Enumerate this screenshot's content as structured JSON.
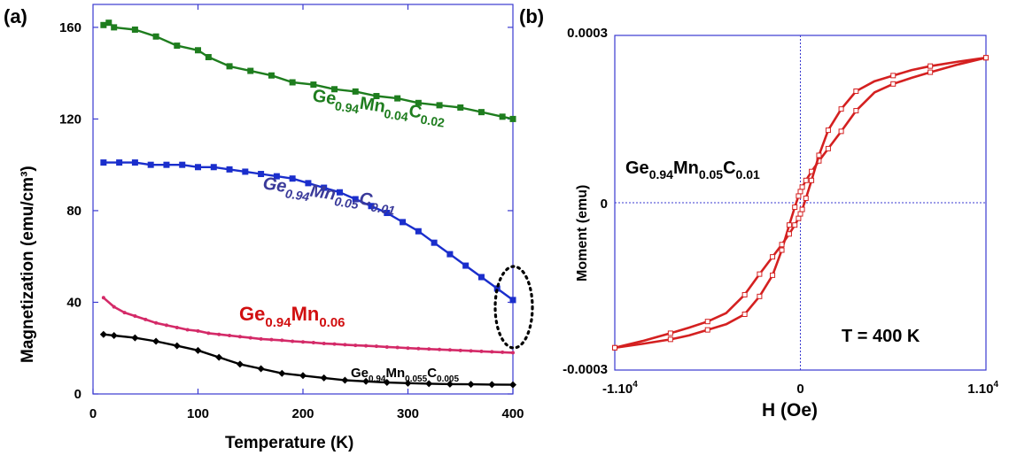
{
  "panel_labels": {
    "a": "(a)",
    "b": "(b)"
  },
  "chart_data": [
    {
      "type": "line",
      "panel": "(a)",
      "xlabel": "Temperature (K)",
      "ylabel": "Magnetization (emu/cm³)",
      "xlim": [
        0,
        400
      ],
      "ylim": [
        0,
        170
      ],
      "xticks": [
        "0",
        "100",
        "200",
        "300",
        "400"
      ],
      "yticks": [
        "0",
        "40",
        "80",
        "120",
        "160"
      ],
      "grid": false,
      "series": [
        {
          "name": "Ge0.94Mn0.04C0.02",
          "color": "#1e7d1e",
          "marker": "square",
          "x": [
            10,
            15,
            20,
            40,
            60,
            80,
            100,
            110,
            130,
            150,
            170,
            190,
            210,
            230,
            250,
            270,
            290,
            310,
            330,
            350,
            370,
            390,
            400
          ],
          "y": [
            161,
            162,
            160,
            159,
            156,
            152,
            150,
            147,
            143,
            141,
            139,
            136,
            135,
            133,
            132,
            130,
            129,
            127,
            126,
            125,
            123,
            121,
            120
          ]
        },
        {
          "name": "Ge0.94Mn0.05C0.01",
          "color": "#1a2ecc",
          "marker": "square",
          "x": [
            10,
            25,
            40,
            55,
            70,
            85,
            100,
            115,
            130,
            145,
            160,
            175,
            190,
            205,
            220,
            235,
            250,
            265,
            280,
            295,
            310,
            325,
            340,
            355,
            370,
            385,
            400
          ],
          "y": [
            101,
            101,
            101,
            100,
            100,
            100,
            99,
            99,
            98,
            97,
            96,
            95,
            94,
            92,
            90,
            88,
            85,
            82,
            79,
            75,
            71,
            66,
            61,
            56,
            51,
            46,
            41
          ]
        },
        {
          "name": "Ge0.94Mn0.06",
          "color": "#d42a68",
          "marker": "small-dot",
          "x": [
            10,
            20,
            30,
            40,
            50,
            60,
            70,
            80,
            90,
            100,
            110,
            120,
            130,
            140,
            150,
            160,
            170,
            180,
            190,
            200,
            210,
            220,
            230,
            240,
            250,
            260,
            270,
            280,
            290,
            300,
            310,
            320,
            330,
            340,
            350,
            360,
            370,
            380,
            390,
            400
          ],
          "y": [
            42,
            38,
            35.5,
            34,
            32.5,
            31,
            30,
            29,
            28,
            27.5,
            26.5,
            26,
            25.5,
            25,
            24.5,
            24,
            23.7,
            23.4,
            23,
            22.7,
            22.4,
            22,
            21.8,
            21.5,
            21.2,
            21,
            20.8,
            20.5,
            20.3,
            20,
            19.8,
            19.6,
            19.4,
            19.2,
            19,
            18.8,
            18.6,
            18.4,
            18.2,
            18
          ]
        },
        {
          "name": "Ge0.94Mn0.055C0.005",
          "color": "#000000",
          "marker": "diamond",
          "x": [
            10,
            20,
            40,
            60,
            80,
            100,
            120,
            140,
            160,
            180,
            200,
            220,
            240,
            260,
            280,
            300,
            320,
            340,
            360,
            380,
            400
          ],
          "y": [
            26,
            25.5,
            24.5,
            23,
            21,
            19,
            16,
            13,
            11,
            9,
            8,
            7,
            6,
            5.5,
            5,
            4.7,
            4.5,
            4.3,
            4.2,
            4.1,
            4
          ]
        }
      ],
      "labels": [
        {
          "series": 0,
          "base": "Ge",
          "sub1": "0.94",
          "el2": "Mn",
          "sub2": "0.04",
          "el3": "C",
          "sub3": "0.02",
          "color": "#1e7d1e",
          "italic": false
        },
        {
          "series": 1,
          "base": "Ge",
          "sub1": "0.94",
          "el2": "Mn",
          "sub2": "0.05",
          "el3": "C",
          "sub3": "0.01",
          "color": "#3a3a9a",
          "italic": true
        },
        {
          "series": 2,
          "base": "Ge",
          "sub1": "0.94",
          "el2": "Mn",
          "sub2": "0.06",
          "el3": "",
          "sub3": "",
          "color": "#d10f10",
          "italic": false
        },
        {
          "series": 3,
          "base": "Ge",
          "sub1": "0.94",
          "el2": "Mn",
          "sub2": "0.055",
          "el3": "C",
          "sub3": "0.005",
          "color": "#000000",
          "italic": false
        }
      ],
      "annotation": "dotted ellipse around 400 K"
    },
    {
      "type": "line",
      "panel": "(b)",
      "xlabel": "H (Oe)",
      "ylabel": "Moment (emu)",
      "xlim": [
        -10000,
        10000
      ],
      "ylim": [
        -0.0003,
        0.0003
      ],
      "xticks": [
        "-1.10",
        "0",
        "1.10"
      ],
      "xtick_exp": "4",
      "yticks": [
        "-0.0003",
        "0",
        "0.0003"
      ],
      "grid": false,
      "zero_lines": "dotted",
      "color": "#d42020",
      "annotation_text": "T = 400 K",
      "label": {
        "base": "Ge",
        "sub1": "0.94",
        "el2": "Mn",
        "sub2": "0.05",
        "el3": "C",
        "sub3": "0.01"
      },
      "series": [
        {
          "name": "descending branch",
          "x": [
            10000,
            8500,
            7000,
            6000,
            5000,
            4000,
            3000,
            2200,
            1500,
            1000,
            600,
            300,
            100,
            0,
            -100,
            -300,
            -600,
            -1000,
            -1500,
            -2200,
            -3000,
            -4000,
            -5000,
            -6000,
            -7000,
            -8500,
            -10000
          ],
          "y": [
            0.00026,
            0.000248,
            0.000234,
            0.000224,
            0.000213,
            0.000198,
            0.000165,
            0.000128,
            9.7e-05,
            7.5e-05,
            5.6e-05,
            4e-05,
            2.8e-05,
            2e-05,
            1.2e-05,
            -8e-06,
            -4e-05,
            -8.5e-05,
            -0.00013,
            -0.000168,
            -0.0002,
            -0.000218,
            -0.000228,
            -0.000238,
            -0.000245,
            -0.000253,
            -0.00026
          ]
        },
        {
          "name": "ascending branch",
          "x": [
            -10000,
            -8500,
            -7000,
            -6000,
            -5000,
            -4000,
            -3000,
            -2200,
            -1500,
            -1000,
            -600,
            -300,
            -100,
            0,
            100,
            300,
            600,
            1000,
            1500,
            2200,
            3000,
            4000,
            5000,
            6000,
            7000,
            8500,
            10000
          ],
          "y": [
            -0.00026,
            -0.000248,
            -0.000234,
            -0.000224,
            -0.000213,
            -0.000198,
            -0.000165,
            -0.000128,
            -9.7e-05,
            -7.5e-05,
            -5.6e-05,
            -4e-05,
            -2.8e-05,
            -2e-05,
            -1.2e-05,
            8e-06,
            4e-05,
            8.5e-05,
            0.00013,
            0.000168,
            0.0002,
            0.000218,
            0.000228,
            0.000238,
            0.000245,
            0.000253,
            0.00026
          ]
        }
      ]
    }
  ]
}
